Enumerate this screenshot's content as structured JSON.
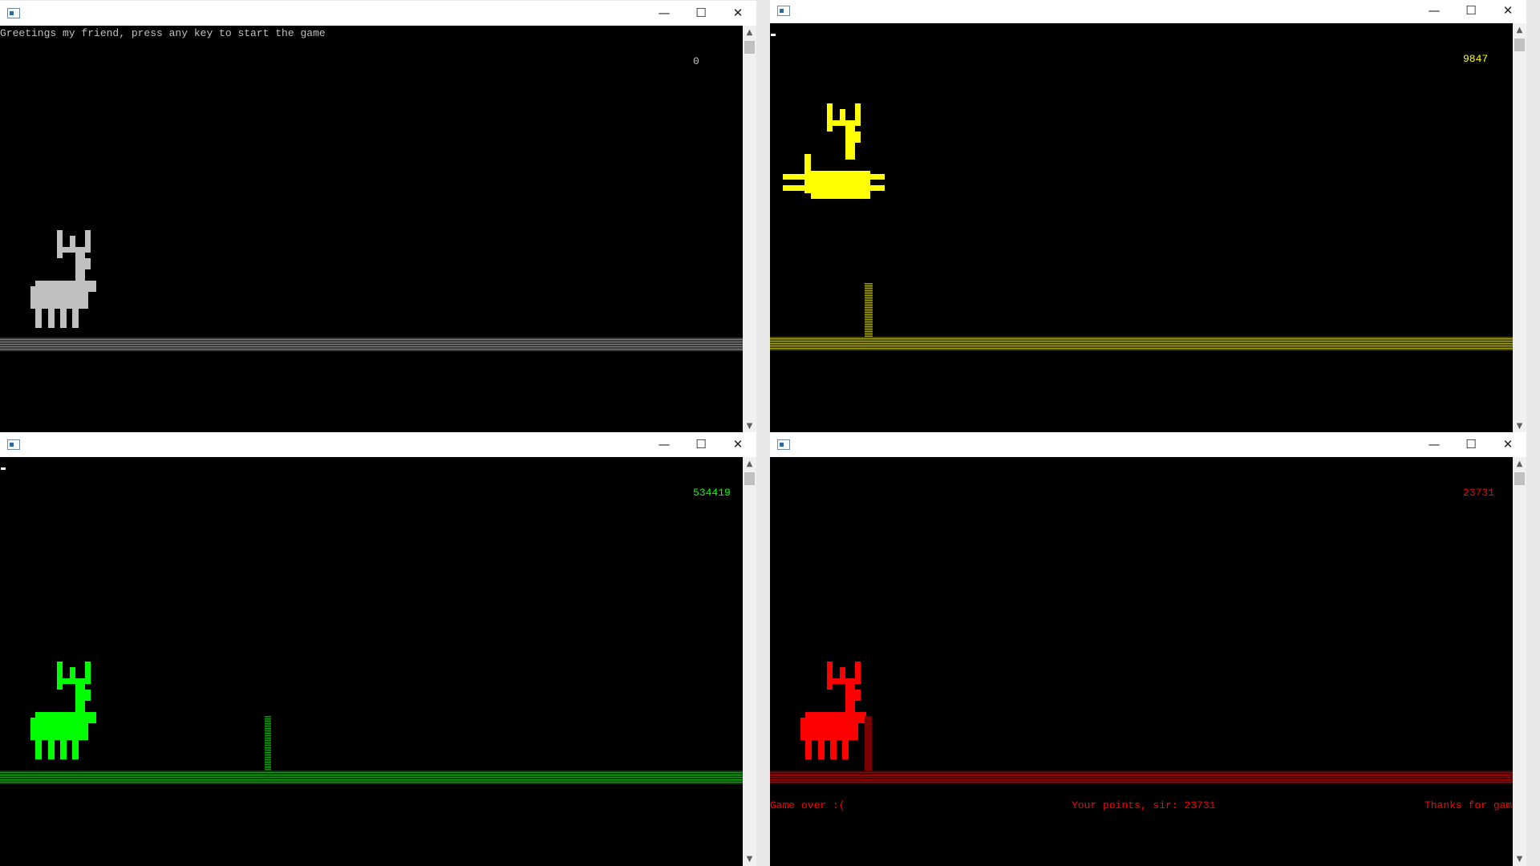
{
  "colors": {
    "white": "#c0c0c0",
    "yellow": "#ffff00",
    "green": "#00ff00",
    "red": "#ff0000"
  },
  "windows": [
    {
      "id": "win1",
      "state": "start screen",
      "message": "Greetings my friend, press any key to start the game",
      "score": "0",
      "color": "#c0c0c0"
    },
    {
      "id": "win2",
      "state": "jumping",
      "score": "9847",
      "color": "#ffff00"
    },
    {
      "id": "win3",
      "state": "running",
      "score": "534419",
      "color": "#00ff00"
    },
    {
      "id": "win4",
      "state": "game over",
      "score": "23731",
      "color": "#ff0000",
      "game_over_text": "Game over :(",
      "points_text": "Your points, sir: 23731",
      "thanks_text": "Thanks for game!"
    }
  ],
  "titlebar": {
    "minimize_icon": "minimize-icon",
    "maximize_icon": "maximize-icon",
    "close_icon": "close-icon",
    "minimize_glyph": "—",
    "maximize_glyph": "☐",
    "close_glyph": "✕"
  }
}
